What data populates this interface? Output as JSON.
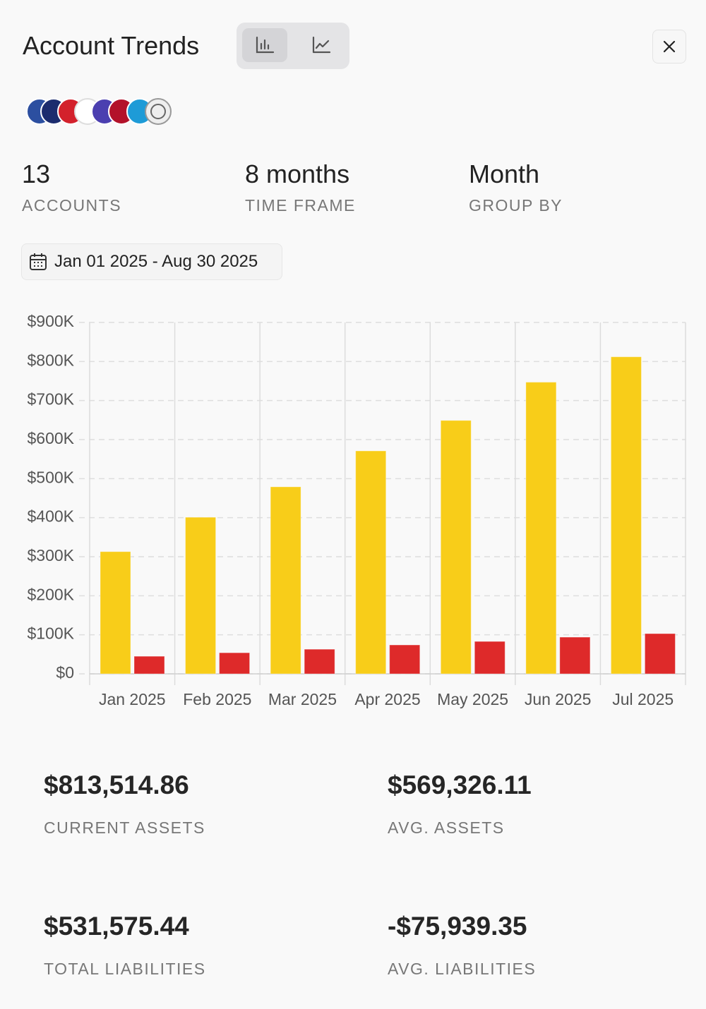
{
  "title": "Account Trends",
  "stats": [
    {
      "value": 13,
      "label": "ACCOUNTS"
    },
    {
      "value": "8 months",
      "label": "TIME FRAME"
    },
    {
      "value": "Month",
      "label": "GROUP BY"
    }
  ],
  "date_range": "Jan 01 2025 - Aug 30 2025",
  "chart_data": {
    "type": "bar",
    "categories": [
      "Jan 2025",
      "Feb 2025",
      "Mar 2025",
      "Apr 2025",
      "May 2025",
      "Jun 2025",
      "Jul 2025"
    ],
    "series": [
      {
        "color": "#f8cd19",
        "values": [
          313000,
          401000,
          479000,
          571000,
          649000,
          747000,
          812000
        ]
      },
      {
        "color": "#de2a2a",
        "values": [
          45000,
          54000,
          63000,
          74000,
          83000,
          94000,
          103000
        ]
      }
    ],
    "ylim": [
      0,
      900000
    ],
    "yticks": [
      {
        "value": 0,
        "label": "$0"
      },
      {
        "value": 100000,
        "label": "$100K"
      },
      {
        "value": 200000,
        "label": "$200K"
      },
      {
        "value": 300000,
        "label": "$300K"
      },
      {
        "value": 400000,
        "label": "$400K"
      },
      {
        "value": 500000,
        "label": "$500K"
      },
      {
        "value": 600000,
        "label": "$600K"
      },
      {
        "value": 700000,
        "label": "$700K"
      },
      {
        "value": 800000,
        "label": "$800K"
      },
      {
        "value": 900000,
        "label": "$900K"
      }
    ],
    "grid": true
  },
  "summary": [
    {
      "value": "$813,514.86",
      "label": "CURRENT ASSETS"
    },
    {
      "value": "$569,326.11",
      "label": "AVG. ASSETS"
    },
    {
      "value": "$531,575.44",
      "label": "TOTAL LIABILITIES"
    },
    {
      "value": "-$75,939.35",
      "label": "AVG. LIABILITIES"
    }
  ]
}
